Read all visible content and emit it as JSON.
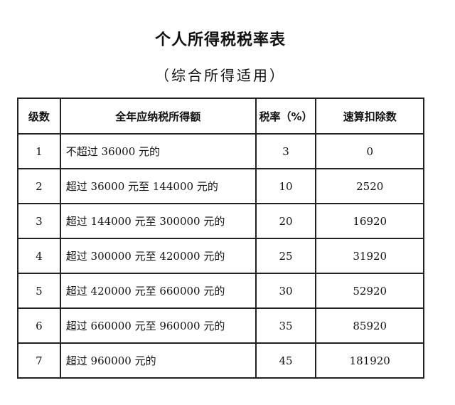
{
  "title": "个人所得税税率表",
  "subtitle": "（综合所得适用）",
  "table": {
    "headers": [
      "级数",
      "全年应纳税所得额",
      "税率（%）",
      "速算扣除数"
    ],
    "rows": [
      {
        "level": "1",
        "range": "不超过 36000 元的",
        "rate": "3",
        "deduction": "0"
      },
      {
        "level": "2",
        "range": "超过 36000 元至 144000 元的",
        "rate": "10",
        "deduction": "2520"
      },
      {
        "level": "3",
        "range": "超过 144000 元至 300000 元的",
        "rate": "20",
        "deduction": "16920"
      },
      {
        "level": "4",
        "range": "超过 300000 元至 420000 元的",
        "rate": "25",
        "deduction": "31920"
      },
      {
        "level": "5",
        "range": "超过 420000 元至 660000 元的",
        "rate": "30",
        "deduction": "52920"
      },
      {
        "level": "6",
        "range": "超过 660000 元至 960000 元的",
        "rate": "35",
        "deduction": "85920"
      },
      {
        "level": "7",
        "range": "超过 960000 元的",
        "rate": "45",
        "deduction": "181920"
      }
    ]
  }
}
